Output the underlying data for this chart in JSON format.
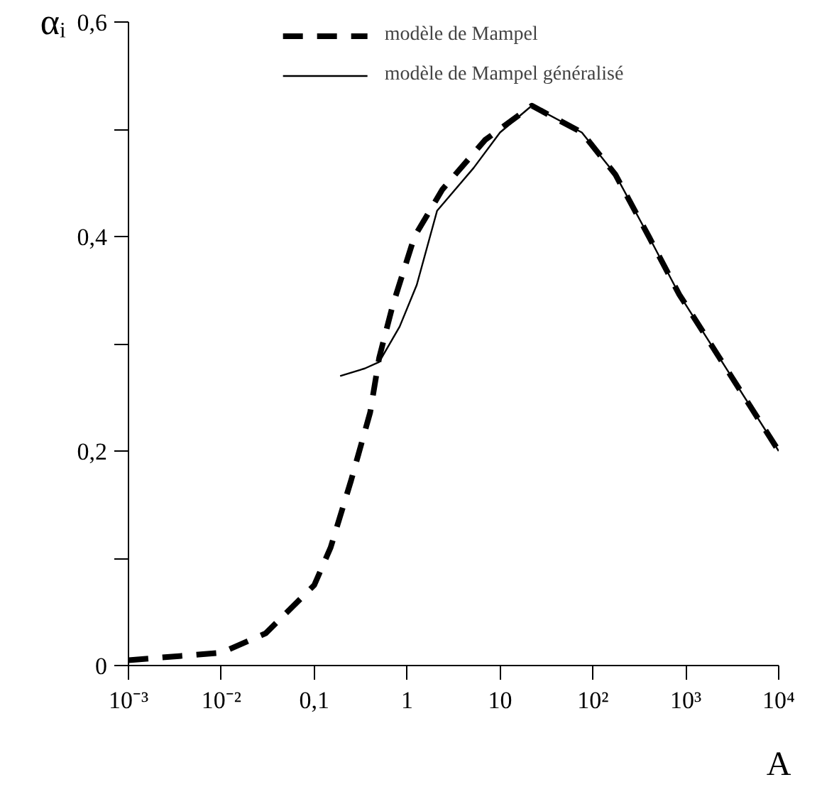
{
  "chart_data": {
    "type": "line",
    "xlabel": "A",
    "ylabel": "αᵢ",
    "log": "x",
    "xlim": [
      0.001,
      10000
    ],
    "ylim": [
      0,
      0.6
    ],
    "xticks": [
      {
        "value": 0.001,
        "label": "10⁻³"
      },
      {
        "value": 0.01,
        "label": "10⁻²"
      },
      {
        "value": 0.1,
        "label": "0,1"
      },
      {
        "value": 1,
        "label": "1"
      },
      {
        "value": 10,
        "label": "10"
      },
      {
        "value": 100,
        "label": "10²"
      },
      {
        "value": 1000,
        "label": "10³"
      },
      {
        "value": 10000,
        "label": "10⁴"
      }
    ],
    "yticks": [
      {
        "value": 0,
        "label": "0"
      },
      {
        "value": 0.1,
        "label": null
      },
      {
        "value": 0.2,
        "label": "0,2"
      },
      {
        "value": 0.3,
        "label": null
      },
      {
        "value": 0.4,
        "label": "0,4"
      },
      {
        "value": 0.5,
        "label": null
      },
      {
        "value": 0.6,
        "label": "0,6"
      }
    ],
    "grid": false,
    "legend": "top",
    "marker": "none",
    "series": [
      {
        "name": "modèle de Mampel",
        "color": "#000000",
        "line_style": "dashed",
        "x": [
          0.001,
          0.01,
          0.03,
          0.1,
          0.15,
          0.25,
          0.4,
          0.5,
          0.7,
          1.2,
          2.4,
          6.9,
          22,
          76,
          174,
          400,
          850,
          10000
        ],
        "values": [
          0.005,
          0.012,
          0.03,
          0.075,
          0.11,
          0.173,
          0.236,
          0.287,
          0.336,
          0.4,
          0.444,
          0.49,
          0.522,
          0.497,
          0.458,
          0.4,
          0.346,
          0.2
        ]
      },
      {
        "name": "modèle de Mampel généralisé",
        "color": "#000000",
        "line_style": "solid",
        "x": [
          0.19,
          0.35,
          0.5,
          0.83,
          1.27,
          2.1,
          5.2,
          10,
          22,
          76,
          174,
          400,
          850,
          10000
        ],
        "values": [
          0.27,
          0.277,
          0.283,
          0.316,
          0.355,
          0.424,
          0.464,
          0.497,
          0.522,
          0.497,
          0.458,
          0.4,
          0.346,
          0.2
        ]
      }
    ]
  }
}
